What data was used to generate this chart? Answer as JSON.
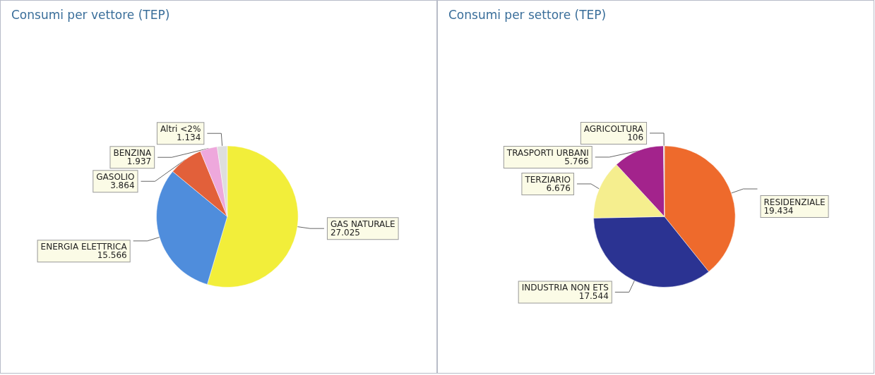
{
  "chart_data": [
    {
      "type": "pie",
      "title": "Consumi per vettore (TEP)",
      "categories": [
        "GAS NATURALE",
        "ENERGIA ELETTRICA",
        "GASOLIO",
        "BENZINA",
        "Altri <2%"
      ],
      "values": [
        27025,
        15566,
        3864,
        1937,
        1134
      ],
      "value_labels": [
        "27.025",
        "15.566",
        "3.864",
        "1.937",
        "1.134"
      ],
      "colors": [
        "#f2ee3a",
        "#4f8ddc",
        "#e2603a",
        "#eea8dc",
        "#dedede"
      ],
      "legend": false
    },
    {
      "type": "pie",
      "title": "Consumi per settore (TEP)",
      "categories": [
        "RESIDENZIALE",
        "INDUSTRIA NON ETS",
        "TERZIARIO",
        "TRASPORTI URBANI",
        "AGRICOLTURA"
      ],
      "values": [
        19434,
        17544,
        6676,
        5766,
        106
      ],
      "value_labels": [
        "19.434",
        "17.544",
        "6.676",
        "5.766",
        "106"
      ],
      "colors": [
        "#ee6a2c",
        "#2b3392",
        "#f5ee8e",
        "#a3238c",
        "#cfcfcf"
      ],
      "legend": false
    }
  ]
}
